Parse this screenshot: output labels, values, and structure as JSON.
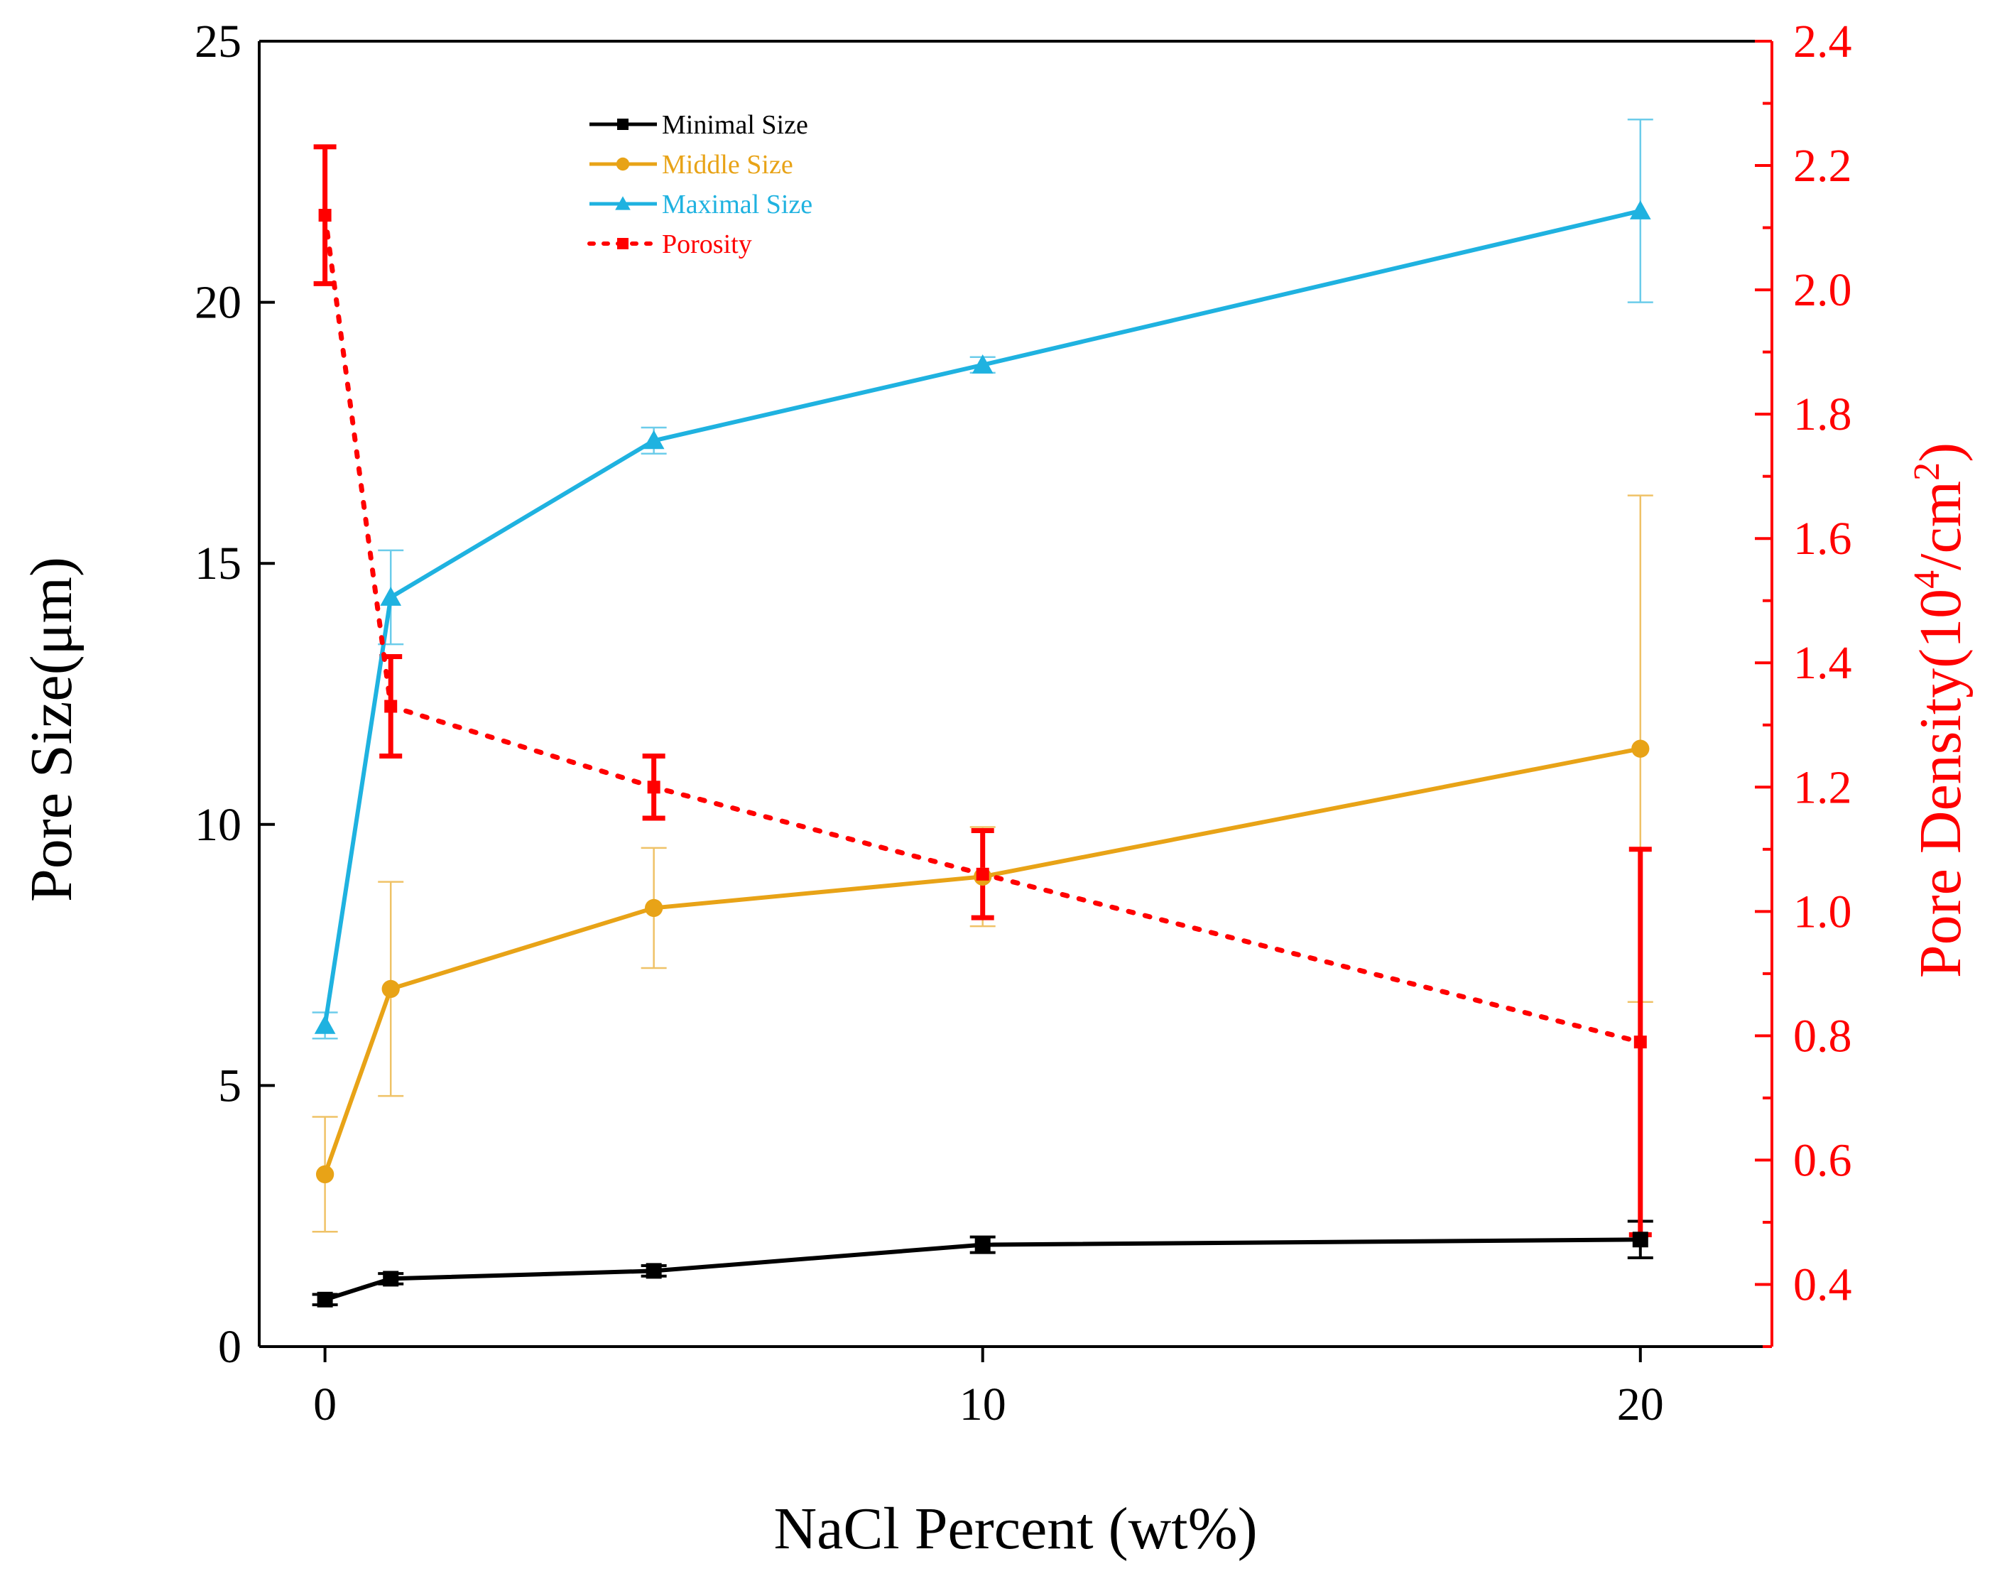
{
  "chart_data": {
    "type": "line",
    "x": [
      0,
      1,
      5,
      10,
      20
    ],
    "xticks": [
      0,
      10,
      20
    ],
    "xlim": [
      -1,
      22
    ],
    "xlabel": "NaCl Percent (wt%)",
    "ylabel": "Pore Size(μm)",
    "ylim": [
      0,
      25
    ],
    "yticks": [
      0,
      5,
      10,
      15,
      20,
      25
    ],
    "y2label_main": "Pore Density(10",
    "y2label_sup": "4",
    "y2label_tail": "/cm",
    "y2label_sup2": "2",
    "y2label_close": ")",
    "y2lim": [
      0.3,
      2.4
    ],
    "y2ticks": [
      "0.4",
      "0.6",
      "0.8",
      "1.0",
      "1.2",
      "1.4",
      "1.6",
      "1.8",
      "2.0",
      "2.2",
      "2.4"
    ],
    "grid": false,
    "legend_position": "top-left",
    "series": [
      {
        "name": "Minimal Size",
        "axis": "left",
        "marker": "square",
        "style": "solid",
        "color": "#000000",
        "text_color": "#000000",
        "values": [
          0.9,
          1.3,
          1.45,
          1.95,
          2.05
        ],
        "errors": [
          0.1,
          0.1,
          0.1,
          0.15,
          0.35
        ]
      },
      {
        "name": "Middle Size",
        "axis": "left",
        "marker": "circle",
        "style": "solid",
        "color": "#E8A317",
        "text_color": "#E8A317",
        "values": [
          3.3,
          6.85,
          8.4,
          9.0,
          11.45
        ],
        "errors": [
          1.1,
          2.05,
          1.15,
          0.95,
          4.85
        ]
      },
      {
        "name": "Maximal Size",
        "axis": "left",
        "marker": "triangle",
        "style": "solid",
        "color": "#1FB2E0",
        "text_color": "#1FB2E0",
        "values": [
          6.15,
          14.35,
          17.35,
          18.8,
          21.75
        ],
        "errors": [
          0.25,
          0.9,
          0.25,
          0.15,
          1.75
        ]
      },
      {
        "name": "Porosity",
        "axis": "right",
        "marker": "square",
        "style": "dotted",
        "color": "#FF0000",
        "text_color": "#FF0000",
        "values": [
          2.12,
          1.33,
          1.2,
          1.06,
          0.79
        ],
        "errors": [
          0.11,
          0.08,
          0.05,
          0.07,
          0.31
        ]
      }
    ]
  }
}
